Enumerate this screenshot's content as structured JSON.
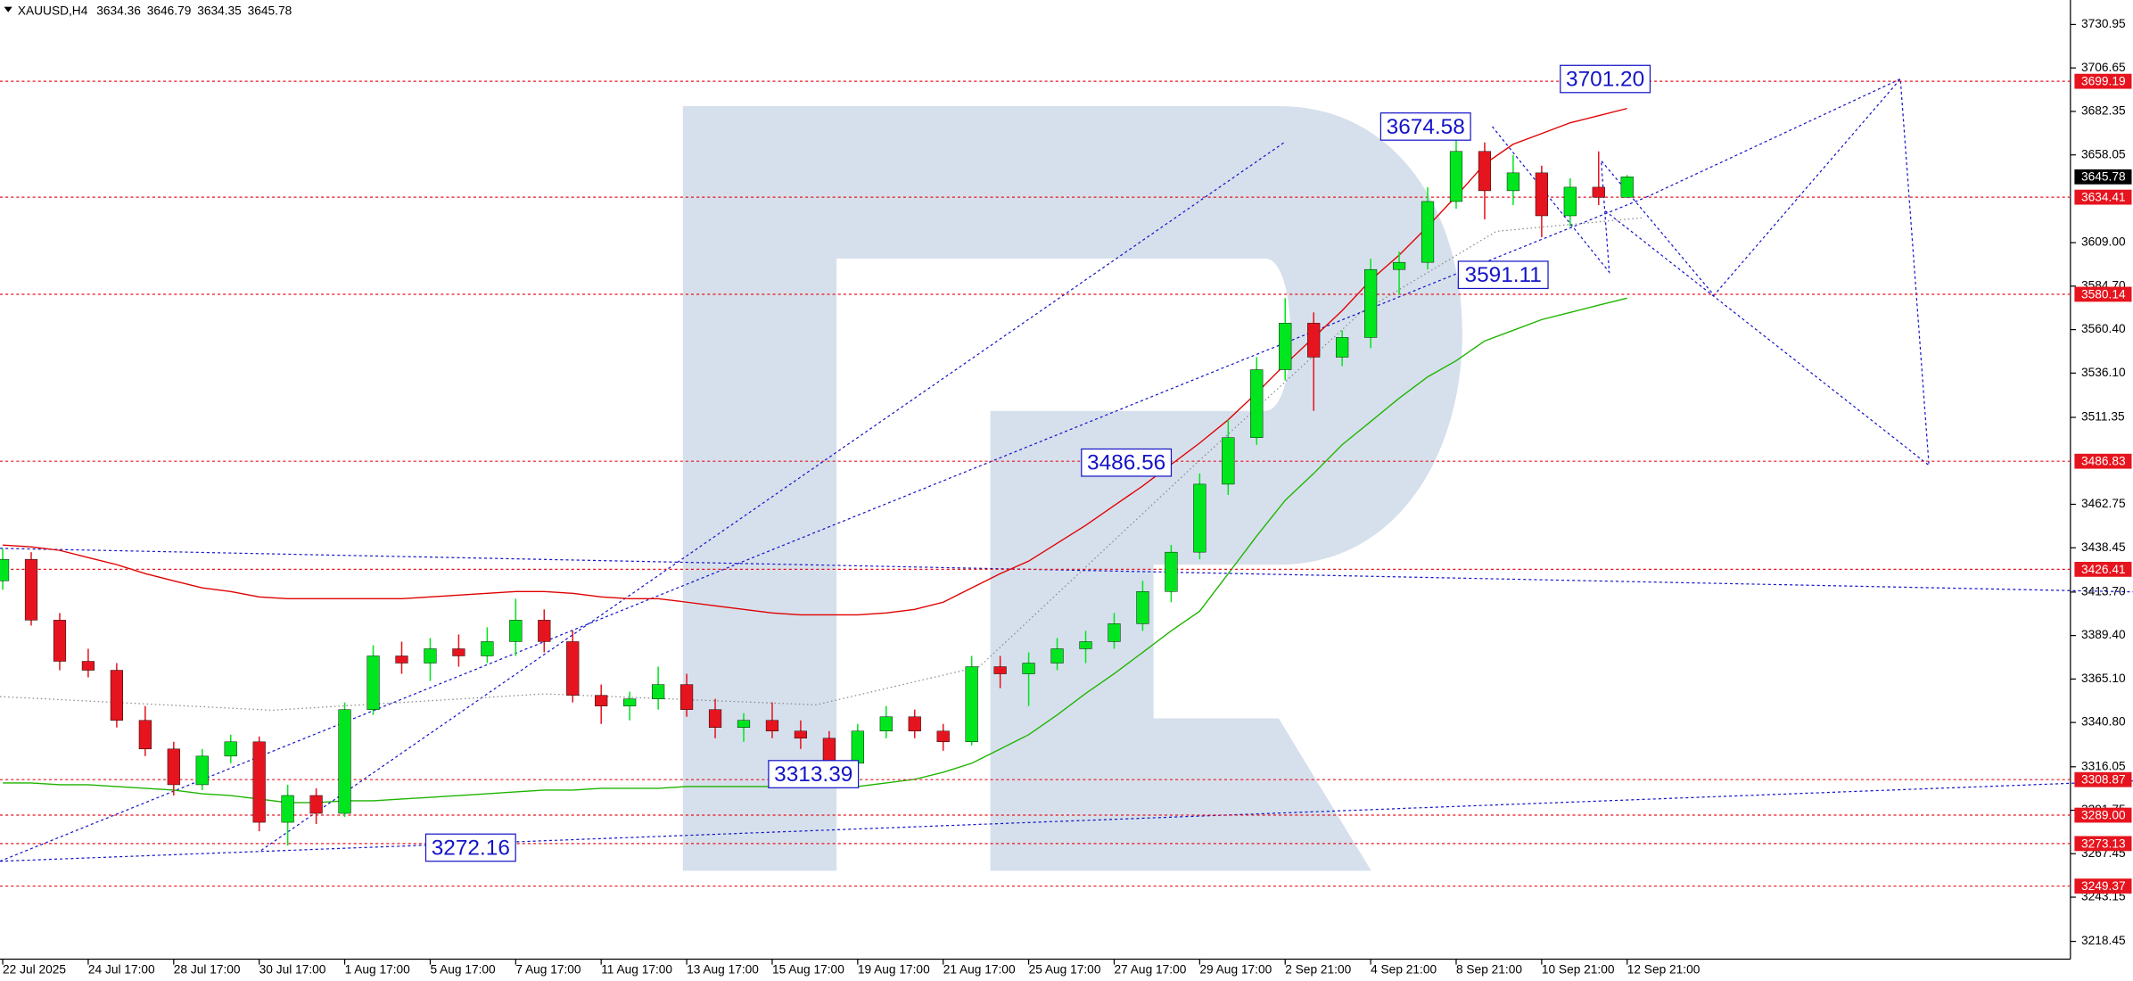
{
  "chart_data": {
    "type": "candlestick",
    "title": "XAUUSD,H4",
    "categories": [
      "22 Jul 2025",
      null,
      null,
      "24 Jul 17:00",
      null,
      null,
      "28 Jul 17:00",
      null,
      null,
      "30 Jul 17:00",
      null,
      null,
      "1 Aug 17:00",
      null,
      null,
      "5 Aug 17:00",
      null,
      null,
      "7 Aug 17:00",
      null,
      null,
      "11 Aug 17:00",
      null,
      null,
      "13 Aug 17:00",
      null,
      null,
      "15 Aug 17:00",
      null,
      null,
      "19 Aug 17:00",
      null,
      null,
      "21 Aug 17:00",
      null,
      null,
      "25 Aug 17:00",
      null,
      null,
      "27 Aug 17:00",
      null,
      null,
      "29 Aug 17:00",
      null,
      null,
      "2 Sep 21:00",
      null,
      null,
      "4 Sep 21:00",
      null,
      null,
      "8 Sep 21:00",
      null,
      null,
      "10 Sep 21:00",
      null,
      null,
      "12 Sep 21:00"
    ],
    "open": [
      3420,
      3432,
      3398,
      3375,
      3370,
      3342,
      3326,
      3306,
      3322,
      3330,
      3285,
      3300,
      3290,
      3348,
      3378,
      3374,
      3382,
      3378,
      3386,
      3398,
      3386,
      3356,
      3350,
      3354,
      3362,
      3348,
      3338,
      3342,
      3336,
      3332,
      3318,
      3336,
      3344,
      3336,
      3330,
      3372,
      3368,
      3374,
      3382,
      3386,
      3396,
      3414,
      3436,
      3474,
      3500,
      3538,
      3564,
      3545,
      3556,
      3594,
      3598,
      3632,
      3660,
      3638,
      3648,
      3624,
      3640,
      3634.36
    ],
    "high": [
      3438,
      3436,
      3402,
      3382,
      3374,
      3350,
      3330,
      3326,
      3334,
      3333,
      3306,
      3304,
      3352,
      3384,
      3386,
      3388,
      3390,
      3394,
      3410,
      3404,
      3392,
      3362,
      3358,
      3372,
      3368,
      3354,
      3346,
      3352,
      3342,
      3336,
      3340,
      3350,
      3348,
      3340,
      3378,
      3378,
      3380,
      3388,
      3392,
      3402,
      3420,
      3440,
      3480,
      3510,
      3545,
      3578,
      3570,
      3560,
      3600,
      3604,
      3640,
      3674.58,
      3665,
      3658,
      3652,
      3645,
      3660,
      3646.79
    ],
    "low": [
      3415,
      3395,
      3370,
      3366,
      3338,
      3322,
      3300,
      3303,
      3318,
      3280,
      3272,
      3284,
      3288,
      3345,
      3368,
      3364,
      3372,
      3374,
      3378,
      3380,
      3352,
      3340,
      3342,
      3348,
      3344,
      3332,
      3330,
      3332,
      3326,
      3313.39,
      3315,
      3332,
      3332,
      3325,
      3328,
      3360,
      3350,
      3370,
      3374,
      3382,
      3392,
      3408,
      3432,
      3468,
      3496,
      3532,
      3515,
      3540,
      3550,
      3580,
      3594,
      3628,
      3622,
      3630,
      3612,
      3618,
      3630,
      3634.35
    ],
    "close": [
      3432,
      3398,
      3375,
      3370,
      3342,
      3326,
      3306,
      3322,
      3330,
      3285,
      3300,
      3290,
      3348,
      3378,
      3374,
      3382,
      3378,
      3386,
      3398,
      3386,
      3356,
      3350,
      3354,
      3362,
      3348,
      3338,
      3342,
      3336,
      3332,
      3318,
      3336,
      3344,
      3336,
      3330,
      3372,
      3368,
      3374,
      3382,
      3386,
      3396,
      3414,
      3436,
      3474,
      3500,
      3538,
      3564,
      3545,
      3556,
      3594,
      3598,
      3632,
      3660,
      3638,
      3648,
      3624,
      3640,
      3634.36,
      3645.78
    ],
    "up_color": "#00e61e",
    "down_color": "#e6141e",
    "series": [
      {
        "color": "#e00000",
        "values": [
          3440,
          3439,
          3437,
          3433,
          3429,
          3424,
          3420,
          3416,
          3414,
          3411,
          3410,
          3410,
          3410,
          3410,
          3410,
          3411,
          3412,
          3413,
          3414,
          3414,
          3413,
          3411,
          3410,
          3410,
          3408,
          3406,
          3404,
          3402,
          3401,
          3401,
          3401,
          3402,
          3404,
          3408,
          3416,
          3424,
          3431,
          3441,
          3451,
          3462,
          3473,
          3485,
          3497,
          3510,
          3525,
          3541,
          3556,
          3571,
          3588,
          3602,
          3618,
          3635,
          3653,
          3664,
          3670,
          3676,
          3680,
          3684
        ]
      },
      {
        "color": "#1eb400",
        "values": [
          3307,
          3307,
          3306,
          3306,
          3305,
          3304,
          3303,
          3301,
          3300,
          3298,
          3296,
          3296,
          3297,
          3297,
          3298,
          3299,
          3300,
          3301,
          3302,
          3303,
          3303,
          3304,
          3304,
          3304,
          3305,
          3305,
          3305,
          3305,
          3305,
          3305,
          3305,
          3307,
          3309,
          3313,
          3318,
          3326,
          3334,
          3345,
          3357,
          3368,
          3380,
          3392,
          3403,
          3424,
          3445,
          3465,
          3480,
          3496,
          3509,
          3522,
          3534,
          3543,
          3554,
          3560,
          3566,
          3570,
          3574,
          3578
        ]
      }
    ],
    "ylim": [
      3208.5,
      3744.6
    ],
    "yticks": [
      3218.45,
      3243.15,
      3267.45,
      3291.75,
      3316.05,
      {
        "value": 3340.8,
        "label": "3340.80"
      },
      {
        "value": 3365.1,
        "label": "3365.10"
      },
      {
        "value": 3389.4,
        "label": "3389.40"
      },
      {
        "value": 3413.7,
        "label": "3413.70"
      },
      3438.45,
      3462.75,
      3511.35,
      {
        "value": 3536.1,
        "label": "3536.10"
      },
      {
        "value": 3560.4,
        "label": "3560.40"
      },
      {
        "value": 3584.7,
        "label": "3584.70"
      },
      {
        "value": 3609,
        "label": "3609.00"
      },
      3658.05,
      3682.35,
      3706.65,
      3730.95
    ],
    "levels": [
      3699.19,
      3634.41,
      3580.14,
      3486.83,
      3426.41,
      3308.87,
      {
        "value": 3289,
        "label": "3289.00"
      },
      3273.13,
      3249.37
    ],
    "level_color": "#e6141e",
    "annotations": [
      "3701.20",
      "3674.58",
      "3591.11",
      "3486.56",
      "3313.39",
      "3272.16"
    ],
    "annotation_color": "#1414c8",
    "grid": false
  }
}
